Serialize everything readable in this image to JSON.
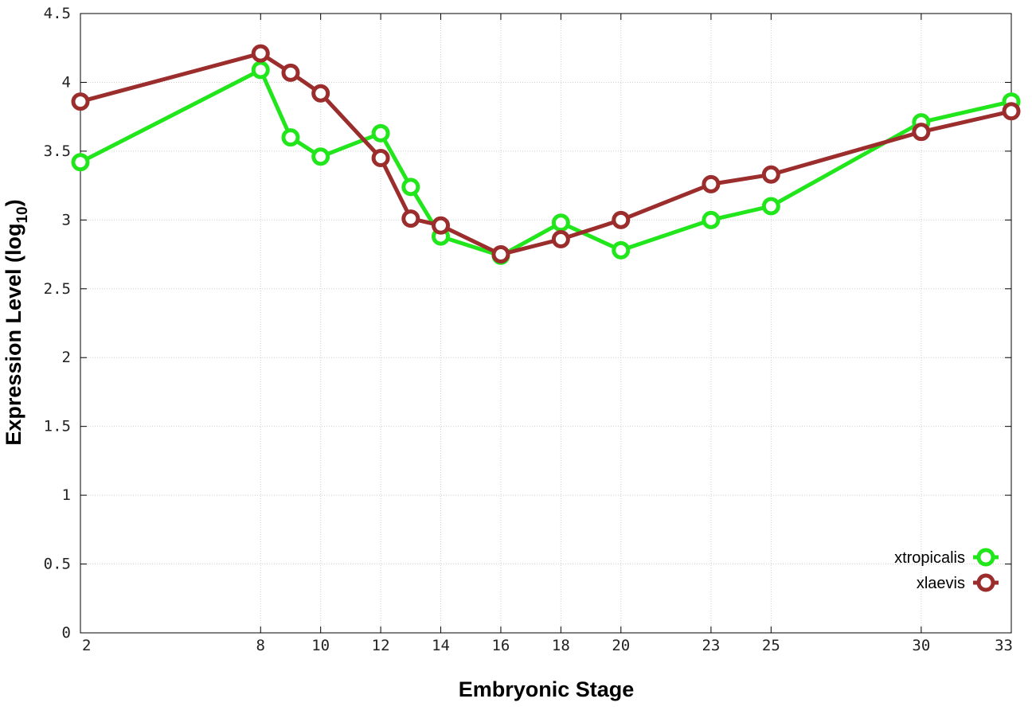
{
  "chart_data": {
    "type": "line",
    "title": "",
    "xlabel": "Embryonic Stage",
    "ylabel_main": "Expression Level (log",
    "ylabel_sub": "10",
    "ylabel_close": ")",
    "x": [
      2,
      8,
      9,
      10,
      12,
      13,
      14,
      16,
      18,
      20,
      23,
      25,
      30,
      33
    ],
    "x_ticks": [
      2,
      8,
      10,
      12,
      14,
      16,
      18,
      20,
      23,
      25,
      30,
      33
    ],
    "y_ticks": [
      "0",
      "0.5",
      "1",
      "1.5",
      "2",
      "2.5",
      "3",
      "3.5",
      "4",
      "4.5"
    ],
    "xlim": [
      2,
      33
    ],
    "ylim": [
      0,
      4.5
    ],
    "grid": true,
    "legend_position": "bottom-right",
    "series": [
      {
        "name": "xtropicalis",
        "color": "#22e61c",
        "values": [
          3.42,
          4.09,
          3.6,
          3.46,
          3.63,
          3.24,
          2.88,
          2.74,
          2.98,
          2.78,
          3.0,
          3.1,
          3.71,
          3.86
        ]
      },
      {
        "name": "xlaevis",
        "color": "#9b2d2d",
        "values": [
          3.86,
          4.21,
          4.07,
          3.92,
          3.45,
          3.01,
          2.96,
          2.75,
          2.86,
          3.0,
          3.26,
          3.33,
          3.64,
          3.79
        ]
      }
    ]
  }
}
